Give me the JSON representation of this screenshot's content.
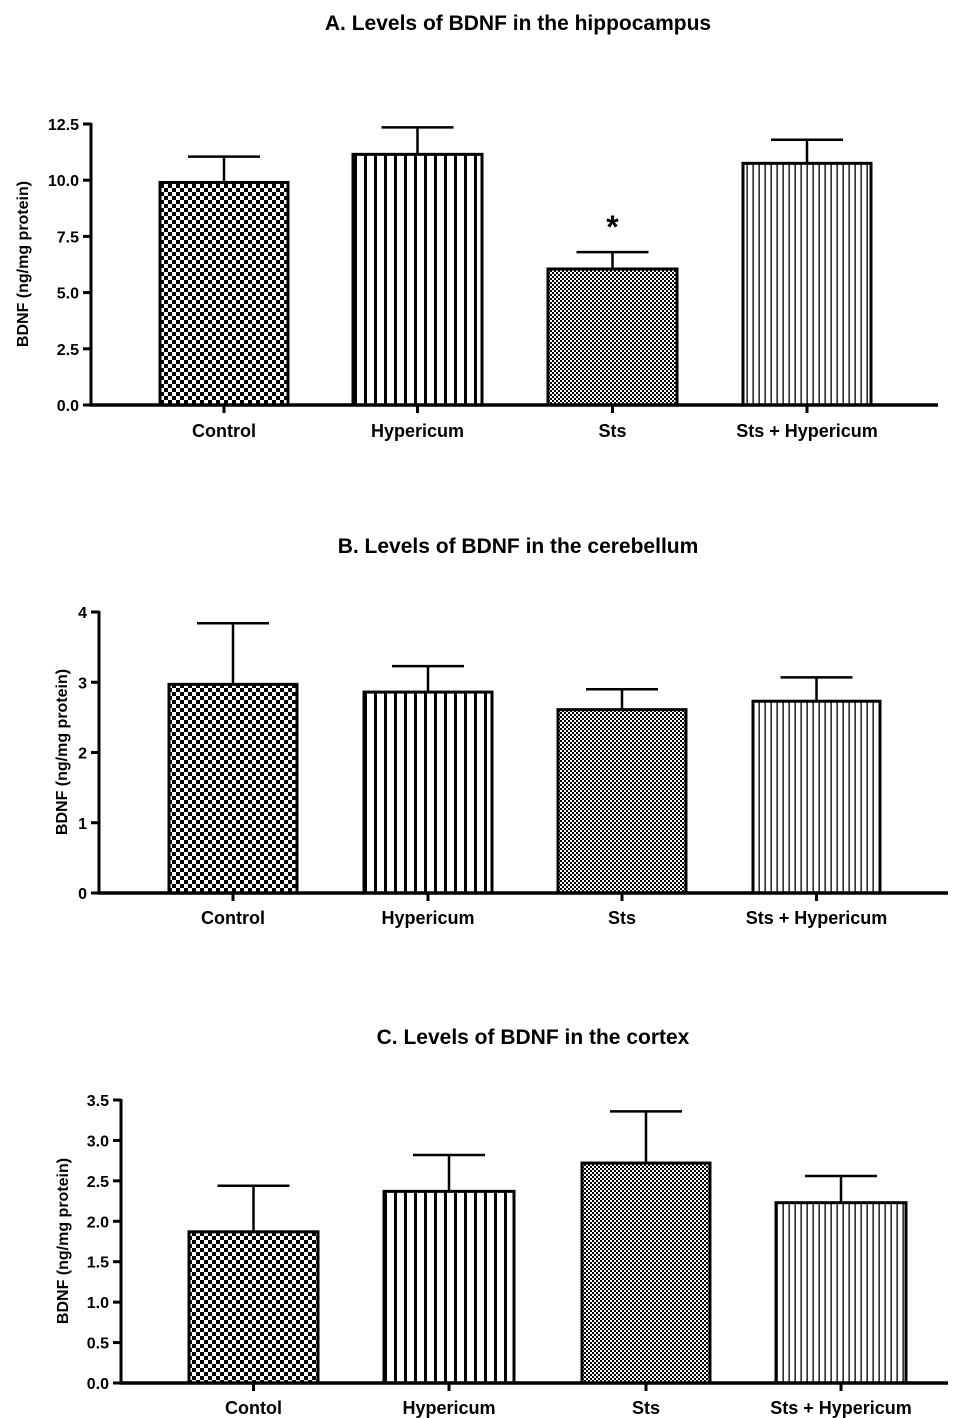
{
  "chart_data": [
    {
      "type": "bar",
      "title": "A. Levels of BDNF in the hippocampus",
      "ylabel": "BDNF (ng/mg protein)",
      "xlabel": "",
      "categories": [
        "Control",
        "Hypericum",
        "Sts",
        "Sts + Hypericum"
      ],
      "values": [
        9.9,
        11.15,
        6.05,
        10.75
      ],
      "errors": [
        1.15,
        1.2,
        0.75,
        1.05
      ],
      "annotations": [
        "",
        "",
        "*",
        ""
      ],
      "ylim": [
        0,
        12.5
      ],
      "yticks": [
        "0.0",
        "2.5",
        "5.0",
        "7.5",
        "10.0",
        "12.5"
      ],
      "patterns": [
        "checker",
        "stripes-wide",
        "checker-fine",
        "stripes-fine"
      ],
      "grid": false
    },
    {
      "type": "bar",
      "title": "B. Levels of BDNF in the cerebellum",
      "ylabel": "BDNF (ng/mg protein)",
      "xlabel": "",
      "categories": [
        "Control",
        "Hypericum",
        "Sts",
        "Sts + Hypericum"
      ],
      "values": [
        2.97,
        2.86,
        2.61,
        2.73
      ],
      "errors": [
        0.87,
        0.37,
        0.29,
        0.34
      ],
      "annotations": [
        "",
        "",
        "",
        ""
      ],
      "ylim": [
        0,
        4
      ],
      "yticks": [
        "0",
        "1",
        "2",
        "3",
        "4"
      ],
      "patterns": [
        "checker",
        "stripes-wide",
        "checker-fine",
        "stripes-fine"
      ],
      "grid": false
    },
    {
      "type": "bar",
      "title": "C. Levels of BDNF in the cortex",
      "ylabel": "BDNF (ng/mg protein)",
      "xlabel": "",
      "categories": [
        "Contol",
        "Hypericum",
        "Sts",
        "Sts + Hypericum"
      ],
      "values": [
        1.87,
        2.37,
        2.72,
        2.23
      ],
      "errors": [
        0.57,
        0.45,
        0.64,
        0.33
      ],
      "annotations": [
        "",
        "",
        "",
        ""
      ],
      "ylim": [
        0,
        3.5
      ],
      "yticks": [
        "0.0",
        "0.5",
        "1.0",
        "1.5",
        "2.0",
        "2.5",
        "3.0",
        "3.5"
      ],
      "patterns": [
        "checker",
        "stripes-wide",
        "checker-fine",
        "stripes-fine"
      ],
      "grid": false
    }
  ]
}
